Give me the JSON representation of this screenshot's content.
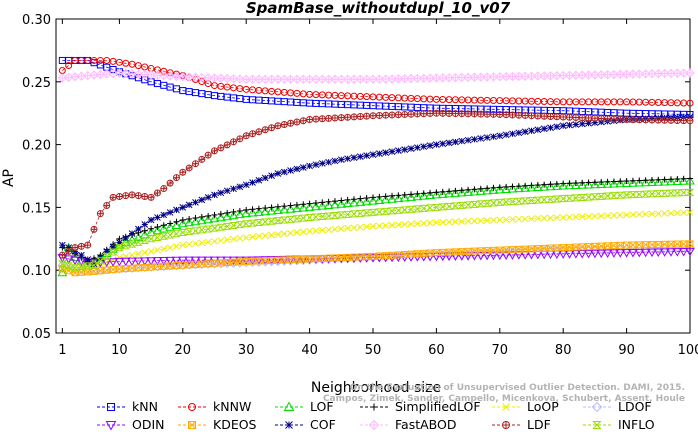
{
  "chart_data": {
    "type": "line",
    "title": "SpamBase_withoutdupl_10_v07",
    "xlabel": "Neighborhood size",
    "ylabel": "AP",
    "xlim": [
      0,
      100
    ],
    "ylim": [
      0.05,
      0.3
    ],
    "xticks": [
      "1",
      "10",
      "20",
      "30",
      "40",
      "50",
      "60",
      "70",
      "80",
      "90",
      "100"
    ],
    "yticks": [
      "0.05",
      "0.10",
      "0.15",
      "0.20",
      "0.25",
      "0.30"
    ],
    "grid": false,
    "legend_position": "bottom",
    "credit": "Campos, Zimek, Sander, Campello, Micenkova, Schubert, Assent, Houle",
    "credit_line1": "On the Evaluation of Unsupervised Outlier Detection. DAMI, 2015.",
    "series": [
      {
        "name": "kNN",
        "color": "#0000ff",
        "marker": "square",
        "points": [
          [
            1,
            0.267
          ],
          [
            5,
            0.267
          ],
          [
            10,
            0.258
          ],
          [
            15,
            0.25
          ],
          [
            20,
            0.243
          ],
          [
            25,
            0.239
          ],
          [
            30,
            0.236
          ],
          [
            40,
            0.233
          ],
          [
            50,
            0.231
          ],
          [
            60,
            0.229
          ],
          [
            70,
            0.228
          ],
          [
            80,
            0.227
          ],
          [
            90,
            0.225
          ],
          [
            100,
            0.224
          ]
        ]
      },
      {
        "name": "kNNW",
        "color": "#ee0000",
        "marker": "circle",
        "points": [
          [
            1,
            0.259
          ],
          [
            3,
            0.267
          ],
          [
            8,
            0.267
          ],
          [
            12,
            0.264
          ],
          [
            20,
            0.255
          ],
          [
            25,
            0.247
          ],
          [
            30,
            0.244
          ],
          [
            40,
            0.24
          ],
          [
            50,
            0.238
          ],
          [
            60,
            0.236
          ],
          [
            70,
            0.235
          ],
          [
            80,
            0.234
          ],
          [
            90,
            0.234
          ],
          [
            100,
            0.233
          ]
        ]
      },
      {
        "name": "LOF",
        "color": "#00dd00",
        "marker": "triangle",
        "points": [
          [
            1,
            0.098
          ],
          [
            2,
            0.118
          ],
          [
            3,
            0.11
          ],
          [
            5,
            0.105
          ],
          [
            7,
            0.11
          ],
          [
            10,
            0.12
          ],
          [
            15,
            0.13
          ],
          [
            20,
            0.137
          ],
          [
            30,
            0.145
          ],
          [
            40,
            0.15
          ],
          [
            50,
            0.155
          ],
          [
            60,
            0.16
          ],
          [
            70,
            0.164
          ],
          [
            80,
            0.167
          ],
          [
            90,
            0.169
          ],
          [
            100,
            0.171
          ]
        ]
      },
      {
        "name": "SimplifiedLOF",
        "color": "#000000",
        "marker": "plus",
        "points": [
          [
            1,
            0.118
          ],
          [
            2,
            0.115
          ],
          [
            3,
            0.113
          ],
          [
            5,
            0.107
          ],
          [
            7,
            0.112
          ],
          [
            10,
            0.125
          ],
          [
            15,
            0.133
          ],
          [
            20,
            0.14
          ],
          [
            30,
            0.148
          ],
          [
            40,
            0.153
          ],
          [
            50,
            0.158
          ],
          [
            60,
            0.162
          ],
          [
            70,
            0.166
          ],
          [
            80,
            0.169
          ],
          [
            90,
            0.171
          ],
          [
            100,
            0.173
          ]
        ]
      },
      {
        "name": "LoOP",
        "color": "#eeee00",
        "marker": "x",
        "points": [
          [
            1,
            0.102
          ],
          [
            3,
            0.1
          ],
          [
            6,
            0.103
          ],
          [
            10,
            0.11
          ],
          [
            20,
            0.12
          ],
          [
            30,
            0.126
          ],
          [
            40,
            0.131
          ],
          [
            50,
            0.135
          ],
          [
            60,
            0.138
          ],
          [
            70,
            0.14
          ],
          [
            80,
            0.142
          ],
          [
            90,
            0.144
          ],
          [
            100,
            0.146
          ]
        ]
      },
      {
        "name": "LDOF",
        "color": "#bbbbff",
        "marker": "diamond",
        "points": [
          [
            1,
            0.104
          ],
          [
            3,
            0.101
          ],
          [
            6,
            0.1
          ],
          [
            10,
            0.101
          ],
          [
            20,
            0.104
          ],
          [
            30,
            0.106
          ],
          [
            40,
            0.108
          ],
          [
            50,
            0.11
          ],
          [
            60,
            0.112
          ],
          [
            70,
            0.114
          ],
          [
            80,
            0.116
          ],
          [
            90,
            0.117
          ],
          [
            100,
            0.118
          ]
        ]
      },
      {
        "name": "ODIN",
        "color": "#9900ff",
        "marker": "triangle-down",
        "points": [
          [
            1,
            0.11
          ],
          [
            3,
            0.108
          ],
          [
            6,
            0.106
          ],
          [
            10,
            0.107
          ],
          [
            20,
            0.108
          ],
          [
            30,
            0.108
          ],
          [
            40,
            0.109
          ],
          [
            50,
            0.11
          ],
          [
            60,
            0.111
          ],
          [
            70,
            0.112
          ],
          [
            80,
            0.113
          ],
          [
            90,
            0.114
          ],
          [
            100,
            0.115
          ]
        ]
      },
      {
        "name": "KDEOS",
        "color": "#ffaa00",
        "marker": "square-x",
        "points": [
          [
            1,
            0.101
          ],
          [
            3,
            0.098
          ],
          [
            6,
            0.099
          ],
          [
            10,
            0.101
          ],
          [
            20,
            0.104
          ],
          [
            30,
            0.107
          ],
          [
            40,
            0.109
          ],
          [
            50,
            0.111
          ],
          [
            60,
            0.114
          ],
          [
            70,
            0.116
          ],
          [
            80,
            0.118
          ],
          [
            90,
            0.12
          ],
          [
            100,
            0.121
          ]
        ]
      },
      {
        "name": "COF",
        "color": "#000088",
        "marker": "star",
        "points": [
          [
            1,
            0.12
          ],
          [
            2,
            0.118
          ],
          [
            4,
            0.112
          ],
          [
            6,
            0.105
          ],
          [
            8,
            0.115
          ],
          [
            10,
            0.122
          ],
          [
            15,
            0.14
          ],
          [
            20,
            0.15
          ],
          [
            25,
            0.16
          ],
          [
            30,
            0.168
          ],
          [
            35,
            0.177
          ],
          [
            40,
            0.183
          ],
          [
            45,
            0.188
          ],
          [
            50,
            0.192
          ],
          [
            60,
            0.2
          ],
          [
            70,
            0.207
          ],
          [
            80,
            0.215
          ],
          [
            90,
            0.22
          ],
          [
            100,
            0.222
          ]
        ]
      },
      {
        "name": "FastABOD",
        "color": "#ffbbff",
        "marker": "diamond-plus",
        "points": [
          [
            1,
            0.253
          ],
          [
            5,
            0.255
          ],
          [
            10,
            0.257
          ],
          [
            20,
            0.254
          ],
          [
            30,
            0.252
          ],
          [
            40,
            0.252
          ],
          [
            50,
            0.252
          ],
          [
            60,
            0.253
          ],
          [
            70,
            0.254
          ],
          [
            80,
            0.255
          ],
          [
            90,
            0.256
          ],
          [
            100,
            0.257
          ]
        ]
      },
      {
        "name": "LDF",
        "color": "#aa2222",
        "marker": "circle-plus",
        "points": [
          [
            1,
            0.112
          ],
          [
            3,
            0.118
          ],
          [
            5,
            0.12
          ],
          [
            7,
            0.145
          ],
          [
            9,
            0.158
          ],
          [
            12,
            0.16
          ],
          [
            15,
            0.158
          ],
          [
            17,
            0.165
          ],
          [
            20,
            0.178
          ],
          [
            25,
            0.195
          ],
          [
            30,
            0.207
          ],
          [
            35,
            0.215
          ],
          [
            40,
            0.22
          ],
          [
            50,
            0.223
          ],
          [
            60,
            0.225
          ],
          [
            70,
            0.224
          ],
          [
            80,
            0.222
          ],
          [
            90,
            0.22
          ],
          [
            100,
            0.219
          ]
        ]
      },
      {
        "name": "INFLO",
        "color": "#99dd00",
        "marker": "hourglass",
        "points": [
          [
            1,
            0.105
          ],
          [
            3,
            0.102
          ],
          [
            6,
            0.104
          ],
          [
            10,
            0.118
          ],
          [
            15,
            0.125
          ],
          [
            20,
            0.13
          ],
          [
            30,
            0.137
          ],
          [
            40,
            0.142
          ],
          [
            50,
            0.146
          ],
          [
            60,
            0.15
          ],
          [
            70,
            0.154
          ],
          [
            80,
            0.157
          ],
          [
            90,
            0.16
          ],
          [
            100,
            0.162
          ]
        ]
      }
    ]
  }
}
